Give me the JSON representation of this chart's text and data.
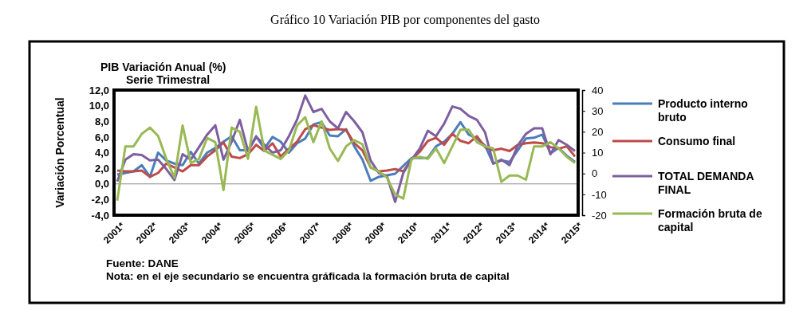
{
  "chart_data": {
    "type": "line",
    "title": "Gráfico 10 Variación PIB por componentes del gasto",
    "subtitle": "PIB Variación Anual (%)\nSerie Trimestral",
    "ylabel": "Variación Porcentual",
    "categories": [
      "2001*",
      null,
      null,
      null,
      "2002*",
      null,
      null,
      null,
      "2003*",
      null,
      null,
      null,
      "2004*",
      null,
      null,
      null,
      "2005*",
      null,
      null,
      null,
      "2006*",
      null,
      null,
      null,
      "2007*",
      null,
      null,
      null,
      "2008*",
      null,
      null,
      null,
      "2009*",
      null,
      null,
      null,
      "2010*",
      null,
      null,
      null,
      "2011*",
      null,
      null,
      null,
      "2012*",
      null,
      null,
      null,
      "2013*",
      null,
      null,
      null,
      "2014*",
      null,
      null,
      null,
      "2015*"
    ],
    "series": [
      {
        "name": "Producto interno bruto",
        "color": "#4a7ebb",
        "values": [
          1.2,
          1.4,
          1.6,
          2.4,
          0.9,
          4.0,
          3.0,
          2.6,
          2.4,
          4.1,
          2.6,
          4.0,
          4.6,
          5.4,
          6.1,
          4.3,
          4.3,
          6.1,
          4.5,
          6.0,
          5.4,
          4.0,
          5.2,
          5.8,
          7.6,
          7.9,
          6.2,
          6.1,
          7.0,
          4.8,
          3.1,
          0.4,
          0.9,
          1.1,
          1.3,
          2.3,
          3.3,
          3.3,
          3.3,
          4.8,
          5.4,
          6.4,
          7.9,
          6.3,
          5.8,
          4.9,
          2.6,
          3.0,
          2.8,
          4.3,
          5.8,
          5.9,
          6.3,
          3.9,
          4.6,
          3.6,
          2.8
        ]
      },
      {
        "name": "Consumo final",
        "color": "#be4b48",
        "values": [
          1.7,
          1.6,
          1.6,
          1.7,
          0.9,
          1.4,
          2.6,
          2.1,
          1.6,
          2.4,
          2.4,
          3.5,
          4.3,
          5.3,
          3.5,
          3.3,
          3.8,
          5.0,
          4.2,
          5.2,
          3.5,
          4.5,
          5.4,
          7.0,
          7.5,
          7.2,
          6.9,
          7.0,
          6.9,
          5.2,
          4.3,
          2.1,
          1.6,
          1.7,
          1.9,
          1.6,
          3.1,
          4.1,
          5.5,
          5.9,
          5.0,
          6.4,
          5.5,
          5.2,
          6.1,
          4.7,
          4.3,
          4.5,
          4.2,
          5.0,
          5.2,
          5.3,
          5.2,
          4.7,
          4.5,
          4.8,
          3.5
        ]
      },
      {
        "name": "TOTAL DEMANDA FINAL",
        "color": "#7d5fa0",
        "values": [
          0.3,
          3.1,
          3.8,
          3.7,
          3.0,
          3.1,
          1.9,
          0.5,
          3.8,
          3.1,
          4.7,
          6.3,
          7.5,
          3.1,
          5.4,
          8.2,
          4.2,
          6.0,
          5.0,
          4.0,
          4.3,
          6.1,
          8.2,
          11.3,
          9.2,
          9.6,
          8.0,
          7.1,
          9.2,
          8.0,
          6.6,
          3.0,
          1.4,
          1.0,
          -2.3,
          1.4,
          3.1,
          4.5,
          6.8,
          6.1,
          7.7,
          9.9,
          9.6,
          8.7,
          8.2,
          6.6,
          2.6,
          3.1,
          2.4,
          4.9,
          6.4,
          7.1,
          7.1,
          3.8,
          5.6,
          5.0,
          4.2
        ]
      },
      {
        "name": "Formación bruta de capital",
        "color": "#98b954",
        "axis": "y2",
        "values": [
          -13,
          13,
          13,
          19,
          22,
          18,
          7,
          -2,
          23,
          5,
          7,
          17,
          15,
          -8,
          22,
          20,
          7,
          32,
          11,
          9,
          7,
          11,
          23,
          27,
          15,
          25,
          12,
          6,
          13,
          16,
          14,
          3,
          1,
          -2,
          -10,
          -12,
          7,
          8,
          7,
          12,
          5,
          13,
          21,
          21,
          15,
          13,
          12,
          -4,
          -1,
          -1,
          -3,
          13,
          13,
          15,
          12,
          8,
          5
        ]
      }
    ],
    "ylim": [
      -4,
      12
    ],
    "yticks": [
      {
        "value": -4,
        "label": "-4,0"
      },
      {
        "value": -2,
        "label": "-2,0"
      },
      {
        "value": 0,
        "label": "0,0"
      },
      {
        "value": 2,
        "label": "2,0"
      },
      {
        "value": 4,
        "label": "4,0"
      },
      {
        "value": 6,
        "label": "6,0"
      },
      {
        "value": 8,
        "label": "8,0"
      },
      {
        "value": 10,
        "label": "10,0"
      },
      {
        "value": 12,
        "label": "12,0"
      }
    ],
    "y2lim": [
      -20,
      40
    ],
    "y2ticks": [
      -20,
      -10,
      0,
      10,
      20,
      30,
      40
    ],
    "legend": "right",
    "marker": "none",
    "line_style": "solid",
    "annotations": [
      "Fuente: DANE",
      "Nota: en el eje secundario se encuentra gráficada la formación bruta de capital"
    ]
  }
}
